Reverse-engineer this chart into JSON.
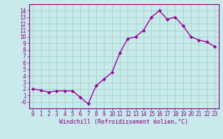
{
  "x": [
    0,
    1,
    2,
    3,
    4,
    5,
    6,
    7,
    8,
    9,
    10,
    11,
    12,
    13,
    14,
    15,
    16,
    17,
    18,
    19,
    20,
    21,
    22,
    23
  ],
  "y": [
    2.0,
    1.8,
    1.5,
    1.7,
    1.7,
    1.7,
    0.7,
    -0.3,
    2.5,
    3.5,
    4.5,
    7.5,
    9.7,
    10.0,
    11.0,
    13.0,
    14.0,
    12.7,
    13.0,
    11.7,
    10.0,
    9.5,
    9.2,
    8.5
  ],
  "line_color": "#990099",
  "marker": "D",
  "marker_size": 2.2,
  "bg_color": "#c8eaea",
  "grid_color": "#aad4d4",
  "xlabel": "Windchill (Refroidissement éolien,°C)",
  "xlabel_color": "#880088",
  "tick_color": "#880088",
  "spine_color": "#880088",
  "ylim": [
    -1,
    15
  ],
  "xlim": [
    -0.5,
    23.5
  ],
  "yticks": [
    0,
    1,
    2,
    3,
    4,
    5,
    6,
    7,
    8,
    9,
    10,
    11,
    12,
    13,
    14
  ],
  "ytick_labels": [
    "-0",
    "1",
    "2",
    "3",
    "4",
    "5",
    "6",
    "7",
    "8",
    "9",
    "10",
    "11",
    "12",
    "13",
    "14"
  ],
  "xticks": [
    0,
    1,
    2,
    3,
    4,
    5,
    6,
    7,
    8,
    9,
    10,
    11,
    12,
    13,
    14,
    15,
    16,
    17,
    18,
    19,
    20,
    21,
    22,
    23
  ],
  "line_width": 1.0,
  "tick_fontsize": 5.5,
  "xlabel_fontsize": 6.0
}
